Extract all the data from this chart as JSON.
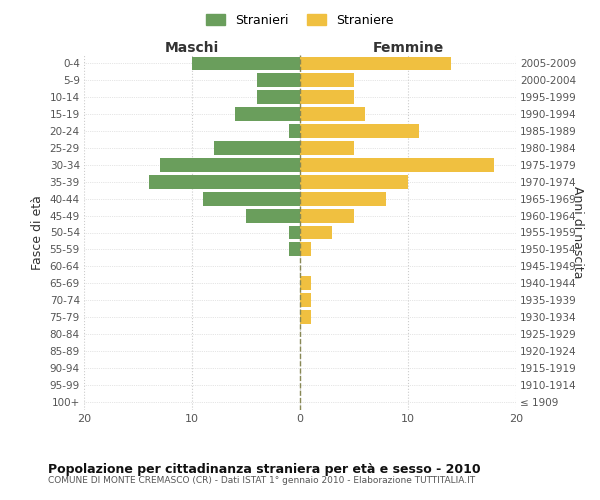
{
  "age_groups": [
    "100+",
    "95-99",
    "90-94",
    "85-89",
    "80-84",
    "75-79",
    "70-74",
    "65-69",
    "60-64",
    "55-59",
    "50-54",
    "45-49",
    "40-44",
    "35-39",
    "30-34",
    "25-29",
    "20-24",
    "15-19",
    "10-14",
    "5-9",
    "0-4"
  ],
  "birth_years": [
    "≤ 1909",
    "1910-1914",
    "1915-1919",
    "1920-1924",
    "1925-1929",
    "1930-1934",
    "1935-1939",
    "1940-1944",
    "1945-1949",
    "1950-1954",
    "1955-1959",
    "1960-1964",
    "1965-1969",
    "1970-1974",
    "1975-1979",
    "1980-1984",
    "1985-1989",
    "1990-1994",
    "1995-1999",
    "2000-2004",
    "2005-2009"
  ],
  "males": [
    0,
    0,
    0,
    0,
    0,
    0,
    0,
    0,
    0,
    1,
    1,
    5,
    9,
    14,
    13,
    8,
    1,
    6,
    4,
    4,
    10
  ],
  "females": [
    0,
    0,
    0,
    0,
    0,
    1,
    1,
    1,
    0,
    1,
    3,
    5,
    8,
    10,
    18,
    5,
    11,
    6,
    5,
    5,
    14
  ],
  "male_color": "#6a9e5c",
  "female_color": "#f0c040",
  "grid_color": "#cccccc",
  "center_line_color": "#888855",
  "title": "Popolazione per cittadinanza straniera per età e sesso - 2010",
  "subtitle": "COMUNE DI MONTE CREMASCO (CR) - Dati ISTAT 1° gennaio 2010 - Elaborazione TUTTITALIA.IT",
  "xlabel_left": "Maschi",
  "xlabel_right": "Femmine",
  "ylabel_left": "Fasce di età",
  "ylabel_right": "Anni di nascita",
  "legend_male": "Stranieri",
  "legend_female": "Straniere",
  "xlim": 20,
  "background_color": "#ffffff"
}
